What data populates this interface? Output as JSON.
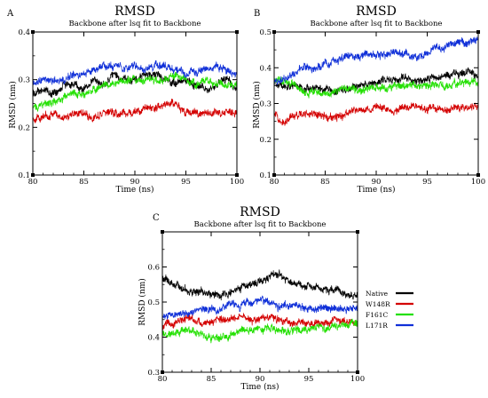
{
  "chart_data": [
    {
      "panel": "A",
      "type": "line",
      "title": "RMSD",
      "subtitle": "Backbone after lsq fit to Backbone",
      "xlabel": "Time (ns)",
      "ylabel": "RMSD (nm)",
      "xlim": [
        80,
        100
      ],
      "ylim": [
        0.1,
        0.4
      ],
      "xticks": [
        80,
        85,
        90,
        95,
        100
      ],
      "yticks": [
        0.1,
        0.2,
        0.3,
        0.4
      ],
      "series": [
        {
          "name": "Native",
          "color": "#000000",
          "x": [
            80,
            81,
            82,
            83,
            84,
            85,
            86,
            87,
            88,
            89,
            90,
            91,
            92,
            93,
            94,
            95,
            96,
            97,
            98,
            99,
            100
          ],
          "y": [
            0.27,
            0.28,
            0.27,
            0.29,
            0.29,
            0.28,
            0.3,
            0.29,
            0.31,
            0.3,
            0.3,
            0.31,
            0.31,
            0.3,
            0.29,
            0.3,
            0.29,
            0.28,
            0.29,
            0.3,
            0.28
          ]
        },
        {
          "name": "W148R",
          "color": "#d40000",
          "x": [
            80,
            81,
            82,
            83,
            84,
            85,
            86,
            87,
            88,
            89,
            90,
            91,
            92,
            93,
            94,
            95,
            96,
            97,
            98,
            99,
            100
          ],
          "y": [
            0.22,
            0.22,
            0.23,
            0.22,
            0.23,
            0.23,
            0.22,
            0.23,
            0.23,
            0.23,
            0.23,
            0.24,
            0.24,
            0.25,
            0.25,
            0.23,
            0.23,
            0.23,
            0.23,
            0.23,
            0.23
          ]
        },
        {
          "name": "F161C",
          "color": "#22e000",
          "x": [
            80,
            81,
            82,
            83,
            84,
            85,
            86,
            87,
            88,
            89,
            90,
            91,
            92,
            93,
            94,
            95,
            96,
            97,
            98,
            99,
            100
          ],
          "y": [
            0.24,
            0.25,
            0.25,
            0.26,
            0.27,
            0.27,
            0.28,
            0.29,
            0.29,
            0.3,
            0.3,
            0.3,
            0.3,
            0.3,
            0.31,
            0.3,
            0.29,
            0.3,
            0.29,
            0.29,
            0.29
          ]
        },
        {
          "name": "L171R",
          "color": "#1030d8",
          "x": [
            80,
            81,
            82,
            83,
            84,
            85,
            86,
            87,
            88,
            89,
            90,
            91,
            92,
            93,
            94,
            95,
            96,
            97,
            98,
            99,
            100
          ],
          "y": [
            0.29,
            0.3,
            0.3,
            0.3,
            0.31,
            0.31,
            0.32,
            0.33,
            0.33,
            0.32,
            0.33,
            0.32,
            0.33,
            0.33,
            0.32,
            0.31,
            0.32,
            0.32,
            0.33,
            0.32,
            0.31
          ]
        }
      ]
    },
    {
      "panel": "B",
      "type": "line",
      "title": "RMSD",
      "subtitle": "Backbone after lsq fit to Backbone",
      "xlabel": "Time (ns)",
      "ylabel": "RMSD (nm)",
      "xlim": [
        80,
        100
      ],
      "ylim": [
        0.1,
        0.5
      ],
      "xticks": [
        80,
        85,
        90,
        95,
        100
      ],
      "yticks": [
        0.1,
        0.2,
        0.3,
        0.4,
        0.5
      ],
      "series": [
        {
          "name": "Native",
          "color": "#000000",
          "x": [
            80,
            81,
            82,
            83,
            84,
            85,
            86,
            87,
            88,
            89,
            90,
            91,
            92,
            93,
            94,
            95,
            96,
            97,
            98,
            99,
            100
          ],
          "y": [
            0.36,
            0.35,
            0.35,
            0.34,
            0.34,
            0.34,
            0.33,
            0.34,
            0.35,
            0.35,
            0.36,
            0.36,
            0.37,
            0.37,
            0.36,
            0.37,
            0.37,
            0.38,
            0.38,
            0.39,
            0.38
          ]
        },
        {
          "name": "W148R",
          "color": "#d40000",
          "x": [
            80,
            81,
            82,
            83,
            84,
            85,
            86,
            87,
            88,
            89,
            90,
            91,
            92,
            93,
            94,
            95,
            96,
            97,
            98,
            99,
            100
          ],
          "y": [
            0.27,
            0.25,
            0.27,
            0.27,
            0.27,
            0.26,
            0.26,
            0.27,
            0.28,
            0.28,
            0.29,
            0.29,
            0.28,
            0.29,
            0.29,
            0.28,
            0.29,
            0.28,
            0.29,
            0.29,
            0.29
          ]
        },
        {
          "name": "F161C",
          "color": "#22e000",
          "x": [
            80,
            81,
            82,
            83,
            84,
            85,
            86,
            87,
            88,
            89,
            90,
            91,
            92,
            93,
            94,
            95,
            96,
            97,
            98,
            99,
            100
          ],
          "y": [
            0.37,
            0.36,
            0.35,
            0.33,
            0.33,
            0.33,
            0.33,
            0.34,
            0.34,
            0.34,
            0.35,
            0.34,
            0.35,
            0.35,
            0.35,
            0.35,
            0.35,
            0.35,
            0.36,
            0.36,
            0.36
          ]
        },
        {
          "name": "L171R",
          "color": "#1030d8",
          "x": [
            80,
            81,
            82,
            83,
            84,
            85,
            86,
            87,
            88,
            89,
            90,
            91,
            92,
            93,
            94,
            95,
            96,
            97,
            98,
            99,
            100
          ],
          "y": [
            0.36,
            0.37,
            0.38,
            0.4,
            0.4,
            0.41,
            0.42,
            0.43,
            0.43,
            0.44,
            0.43,
            0.44,
            0.44,
            0.44,
            0.43,
            0.44,
            0.45,
            0.46,
            0.47,
            0.47,
            0.48
          ]
        }
      ]
    },
    {
      "panel": "C",
      "type": "line",
      "title": "RMSD",
      "subtitle": "Backbone after lsq fit to Backbone",
      "xlabel": "Time (ns)",
      "ylabel": "RMSD (nm)",
      "xlim": [
        80,
        100
      ],
      "ylim": [
        0.3,
        0.7
      ],
      "xticks": [
        80,
        85,
        90,
        95,
        100
      ],
      "yticks": [
        0.3,
        0.4,
        0.5,
        0.6
      ],
      "legend": "right",
      "series": [
        {
          "name": "Native",
          "color": "#000000",
          "x": [
            80,
            81,
            82,
            83,
            84,
            85,
            86,
            87,
            88,
            89,
            90,
            91,
            92,
            93,
            94,
            95,
            96,
            97,
            98,
            99,
            100
          ],
          "y": [
            0.57,
            0.55,
            0.54,
            0.53,
            0.53,
            0.52,
            0.52,
            0.53,
            0.54,
            0.55,
            0.56,
            0.57,
            0.58,
            0.56,
            0.55,
            0.55,
            0.54,
            0.53,
            0.53,
            0.52,
            0.52
          ]
        },
        {
          "name": "W148R",
          "color": "#d40000",
          "x": [
            80,
            81,
            82,
            83,
            84,
            85,
            86,
            87,
            88,
            89,
            90,
            91,
            92,
            93,
            94,
            95,
            96,
            97,
            98,
            99,
            100
          ],
          "y": [
            0.43,
            0.44,
            0.45,
            0.45,
            0.44,
            0.44,
            0.45,
            0.45,
            0.46,
            0.45,
            0.45,
            0.46,
            0.45,
            0.44,
            0.44,
            0.44,
            0.44,
            0.44,
            0.45,
            0.44,
            0.44
          ]
        },
        {
          "name": "F161C",
          "color": "#22e000",
          "x": [
            80,
            81,
            82,
            83,
            84,
            85,
            86,
            87,
            88,
            89,
            90,
            91,
            92,
            93,
            94,
            95,
            96,
            97,
            98,
            99,
            100
          ],
          "y": [
            0.41,
            0.41,
            0.42,
            0.42,
            0.41,
            0.4,
            0.4,
            0.41,
            0.42,
            0.42,
            0.42,
            0.43,
            0.42,
            0.42,
            0.42,
            0.42,
            0.43,
            0.43,
            0.43,
            0.43,
            0.44
          ]
        },
        {
          "name": "L171R",
          "color": "#1030d8",
          "x": [
            80,
            81,
            82,
            83,
            84,
            85,
            86,
            87,
            88,
            89,
            90,
            91,
            92,
            93,
            94,
            95,
            96,
            97,
            98,
            99,
            100
          ],
          "y": [
            0.46,
            0.46,
            0.47,
            0.47,
            0.48,
            0.48,
            0.48,
            0.49,
            0.49,
            0.5,
            0.5,
            0.5,
            0.49,
            0.49,
            0.49,
            0.48,
            0.48,
            0.48,
            0.48,
            0.48,
            0.48
          ]
        }
      ]
    }
  ]
}
